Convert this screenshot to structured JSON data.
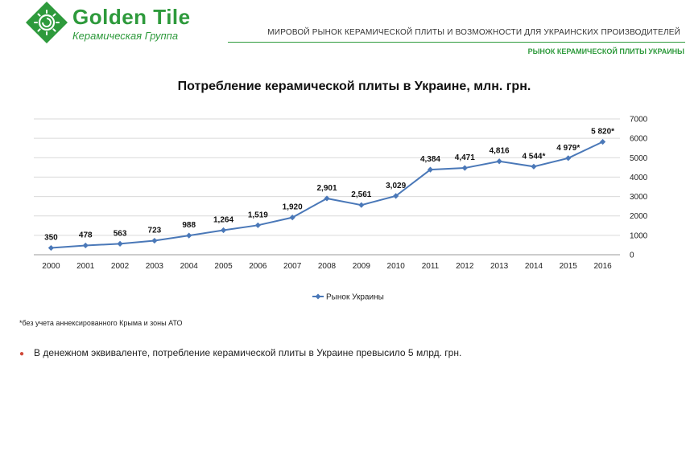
{
  "brand": {
    "name": "Golden Tile",
    "subtitle": "Керамическая Группа",
    "color": "#2e9a3c"
  },
  "header": {
    "title": "МИРОВОЙ РЫНОК КЕРАМИЧЕСКОЙ ПЛИТЫ И ВОЗМОЖНОСТИ ДЛЯ УКРАИНСКИХ ПРОИЗВОДИТЕЛЕЙ",
    "section": "РЫНОК КЕРАМИЧЕСКОЙ ПЛИТЫ УКРАИНЫ"
  },
  "chart_data": {
    "type": "line",
    "title": "Потребление керамической плиты в Украине, млн. грн.",
    "x": [
      "2000",
      "2001",
      "2002",
      "2003",
      "2004",
      "2005",
      "2006",
      "2007",
      "2008",
      "2009",
      "2010",
      "2011",
      "2012",
      "2013",
      "2014",
      "2015",
      "2016"
    ],
    "series": [
      {
        "name": "Рынок Украины",
        "color": "#4a78b8",
        "values": [
          350,
          478,
          563,
          723,
          988,
          1264,
          1519,
          1920,
          2901,
          2561,
          3029,
          4384,
          4471,
          4816,
          4544,
          4979,
          5820
        ],
        "labels": [
          "350",
          "478",
          "563",
          "723",
          "988",
          "1,264",
          "1,519",
          "1,920",
          "2,901",
          "2,561",
          "3,029",
          "4,384",
          "4,471",
          "4,816",
          "4 544*",
          "4 979*",
          "5 820*"
        ]
      }
    ],
    "y_ticks": [
      "0",
      "1000",
      "2000",
      "3000",
      "4000",
      "5000",
      "6000",
      "7000"
    ],
    "ylim": [
      0,
      7000
    ],
    "y_axis_side": "right",
    "grid": true,
    "legend_position": "bottom"
  },
  "footnote": "*без учета аннексированного Крыма и зоны АТО",
  "bullets": [
    "В денежном эквиваленте, потребление керамической плиты в Украине превысило 5 млрд. грн."
  ]
}
